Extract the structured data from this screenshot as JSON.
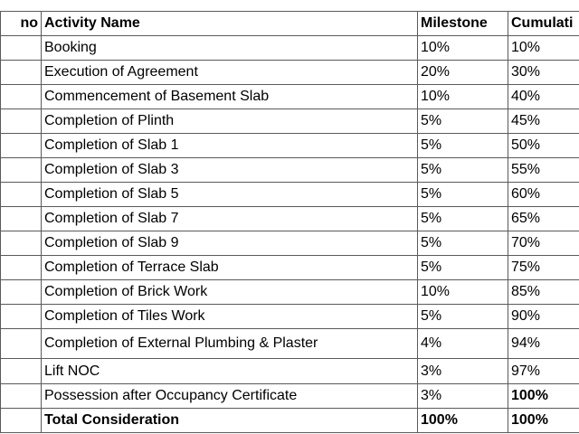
{
  "table": {
    "header": [
      "no",
      "Activity Name",
      "Milestone",
      "Cumulati"
    ],
    "rows": [
      [
        "Booking",
        "10%",
        "10%"
      ],
      [
        "Execution of Agreement",
        "20%",
        "30%"
      ],
      [
        "Commencement of Basement Slab",
        "10%",
        "40%"
      ],
      [
        "Completion of Plinth",
        "5%",
        "45%"
      ],
      [
        "Completion of Slab 1",
        "5%",
        "50%"
      ],
      [
        "Completion of Slab 3",
        "5%",
        "55%"
      ],
      [
        "Completion of Slab 5",
        "5%",
        "60%"
      ],
      [
        "Completion of Slab 7",
        "5%",
        "65%"
      ],
      [
        "Completion of Slab 9",
        "5%",
        "70%"
      ],
      [
        "Completion of Terrace Slab",
        "5%",
        "75%"
      ],
      [
        "Completion of Brick Work",
        "10%",
        "85%"
      ],
      [
        "Completion of Tiles Work",
        "5%",
        "90%"
      ],
      [
        "Completion of External Plumbing & Plaster",
        "4%",
        "94%"
      ],
      [
        "Lift NOC",
        "3%",
        "97%"
      ],
      [
        "Possession after Occupancy Certificate",
        "3%",
        "100%"
      ],
      [
        "Total Consideration",
        "100%",
        "100%"
      ]
    ]
  }
}
